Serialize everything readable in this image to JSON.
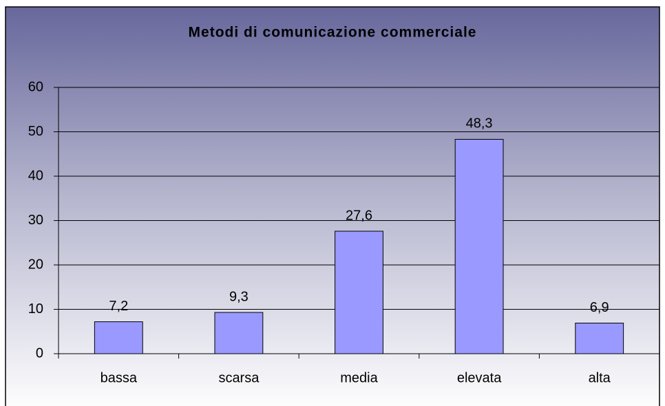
{
  "chart_data": {
    "type": "bar",
    "title": "Metodi di comunicazione commerciale",
    "categories": [
      "bassa",
      "scarsa",
      "media",
      "elevata",
      "alta"
    ],
    "values": [
      7.2,
      9.3,
      27.6,
      48.3,
      6.9
    ],
    "value_labels": [
      "7,2",
      "9,3",
      "27,6",
      "48,3",
      "6,9"
    ],
    "color": "#9999ff",
    "ylim": [
      0,
      60
    ],
    "yticks": [
      0,
      10,
      20,
      30,
      40,
      50,
      60
    ],
    "grid": true
  }
}
